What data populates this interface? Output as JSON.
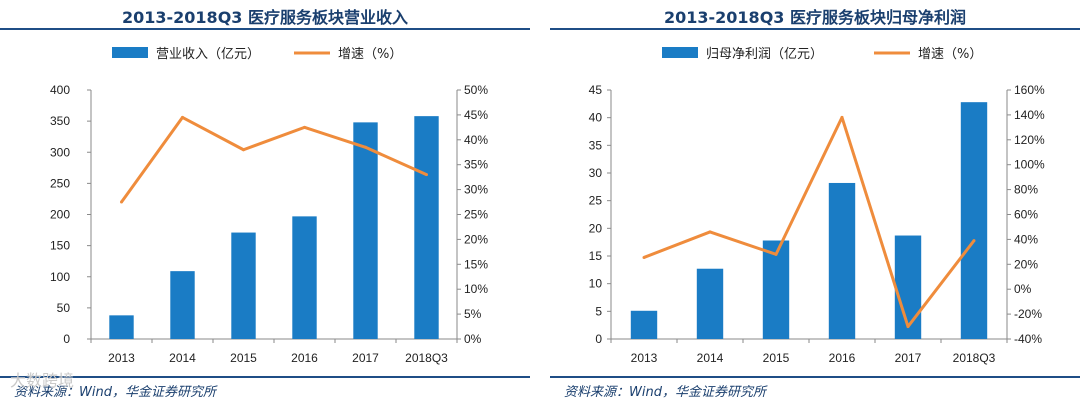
{
  "charts": {
    "left": {
      "title": "2013-2018Q3 医疗服务板块营业收入",
      "source": "资料来源：Wind，华金证券研究所"
    },
    "right": {
      "title": "2013-2018Q3 医疗服务板块归母净利润",
      "source": "资料来源：Wind，华金证券研究所"
    }
  },
  "watermark": "大数跨境",
  "colors": {
    "bar": "#1a7cc5",
    "line": "#ef8c3c",
    "accent": "#1f4e86"
  },
  "chart_data": [
    {
      "type": "bar",
      "title": "2013-2018Q3 医疗服务板块营业收入",
      "categories": [
        "2013",
        "2014",
        "2015",
        "2016",
        "2017",
        "2018Q3"
      ],
      "series": [
        {
          "name": "营业收入（亿元）",
          "kind": "bar",
          "axis": "left",
          "values": [
            38,
            109,
            171,
            197,
            348,
            358
          ]
        },
        {
          "name": "增速（%）",
          "kind": "line",
          "axis": "right",
          "values": [
            27.5,
            44.5,
            38,
            42.5,
            38.5,
            33
          ]
        }
      ],
      "left_axis": {
        "min": 0,
        "max": 400,
        "ticks": [
          "0",
          "50",
          "100",
          "150",
          "200",
          "250",
          "300",
          "350",
          "400"
        ]
      },
      "right_axis": {
        "min": 0,
        "max": 50,
        "ticks": [
          "0%",
          "5%",
          "10%",
          "15%",
          "20%",
          "25%",
          "30%",
          "35%",
          "40%",
          "45%",
          "50%"
        ]
      },
      "legend_position": "top"
    },
    {
      "type": "bar",
      "title": "2013-2018Q3 医疗服务板块归母净利润",
      "categories": [
        "2013",
        "2014",
        "2015",
        "2016",
        "2017",
        "2018Q3"
      ],
      "series": [
        {
          "name": "归母净利润（亿元）",
          "kind": "bar",
          "axis": "left",
          "values": [
            5.1,
            12.7,
            17.8,
            28.2,
            18.7,
            42.8
          ]
        },
        {
          "name": "增速（%）",
          "kind": "line",
          "axis": "right",
          "values": [
            25.5,
            46,
            28,
            138,
            -30,
            39
          ]
        }
      ],
      "left_axis": {
        "min": 0,
        "max": 45,
        "ticks": [
          "0",
          "5",
          "10",
          "15",
          "20",
          "25",
          "30",
          "35",
          "40",
          "45"
        ]
      },
      "right_axis": {
        "min": -40,
        "max": 160,
        "ticks": [
          "-40%",
          "-20%",
          "0%",
          "20%",
          "40%",
          "60%",
          "80%",
          "100%",
          "120%",
          "140%",
          "160%"
        ]
      },
      "legend_position": "top"
    }
  ]
}
